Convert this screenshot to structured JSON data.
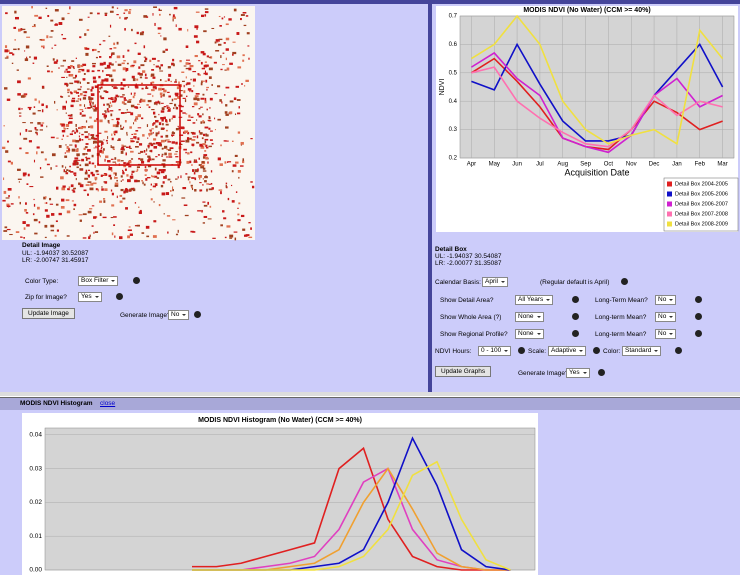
{
  "left_panel": {
    "detail_title": "Detail Image",
    "ul": "UL: -1.94037 30.52087",
    "lr": "LR: -2.00747 31.45917",
    "color_type_label": "Color Type:",
    "color_type": "Box Filter",
    "zip_label": "Zip for Image?",
    "zip": "Yes",
    "update_button": "Update Image",
    "generate_label": "Generate Image?",
    "generate": "No"
  },
  "right_panel": {
    "detail_title": "Detail Box",
    "ul": "UL: -1.94037 30.54087",
    "lr": "LR: -2.00077 31.35087",
    "calendar_label": "Calendar Basis:",
    "calendar": "April",
    "calendar_note": "(Regular default is April)",
    "show_detail_label": "Show Detail Area?",
    "show_detail": "All Years",
    "mean1_label": "Long-Term Mean?",
    "mean1": "No",
    "show_whole_label": "Show Whole Area (?)",
    "show_whole": "None",
    "mean2_label": "Long-term Mean?",
    "mean2": "No",
    "show_regional_label": "Show Regional Profile?",
    "show_regional": "None",
    "mean3_label": "Long-term Mean?",
    "mean3": "No",
    "ndvi_label": "NDVI Hours:",
    "ndvi": "0 - 100",
    "scale_label": "Scale:",
    "scale": "Adaptive",
    "color_label": "Color:",
    "color": "Standard",
    "update_button": "Update Graphs",
    "generate_label": "Generate Image?",
    "generate": "Yes"
  },
  "histogram_header": {
    "title": "MODIS NDVI Histogram",
    "link": "close"
  },
  "chart_data": [
    {
      "type": "line",
      "title": "MODIS NDVI (No Water) (CCM >= 40%)",
      "y_label": "NDVI",
      "x_label": "Acquisition Date",
      "categories": [
        "Apr",
        "May",
        "Jun",
        "Jul",
        "Aug",
        "Sep",
        "Oct",
        "Nov",
        "Dec",
        "Jan",
        "Feb",
        "Mar"
      ],
      "ylim": [
        0.2,
        0.7
      ],
      "yticks": [
        0.2,
        0.3,
        0.4,
        0.5,
        0.6,
        0.7
      ],
      "grid": true,
      "legend": "bottom-right",
      "series": [
        {
          "name": "Detail Box 2004-2005",
          "color": "#e02020",
          "values": [
            0.5,
            0.55,
            0.47,
            0.38,
            0.27,
            0.24,
            0.23,
            0.3,
            0.4,
            0.36,
            0.3,
            0.33
          ]
        },
        {
          "name": "Detail Box 2005-2006",
          "color": "#1010c8",
          "values": [
            0.47,
            0.44,
            0.6,
            0.46,
            0.33,
            0.26,
            0.26,
            0.28,
            0.42,
            0.51,
            0.6,
            0.45
          ]
        },
        {
          "name": "Detail Box 2006-2007",
          "color": "#d020d0",
          "values": [
            0.52,
            0.57,
            0.48,
            0.42,
            0.27,
            0.24,
            0.22,
            0.28,
            0.42,
            0.48,
            0.38,
            0.42
          ]
        },
        {
          "name": "Detail Box 2007-2008",
          "color": "#ff70b0",
          "values": [
            0.5,
            0.52,
            0.4,
            0.34,
            0.29,
            0.25,
            0.24,
            0.3,
            0.42,
            0.35,
            0.4,
            0.38
          ]
        },
        {
          "name": "Detail Box 2008-2009",
          "color": "#f0e040",
          "values": [
            0.55,
            0.6,
            0.7,
            0.6,
            0.4,
            0.3,
            0.25,
            0.28,
            0.3,
            0.25,
            0.65,
            0.55
          ]
        }
      ]
    },
    {
      "type": "line",
      "title": "MODIS NDVI Histogram (No Water) (CCM >= 40%)",
      "x": [
        0.3,
        0.35,
        0.4,
        0.45,
        0.5,
        0.55,
        0.6,
        0.65,
        0.7,
        0.75,
        0.8,
        0.85,
        0.9,
        0.95
      ],
      "xlim": [
        0.0,
        1.0
      ],
      "ylim": [
        0,
        0.042
      ],
      "yticks": [
        {
          "value": 0,
          "label": "0.00"
        },
        {
          "value": 0.01,
          "label": "0.01"
        },
        {
          "value": 0.02,
          "label": "0.02"
        },
        {
          "value": 0.03,
          "label": "0.03"
        },
        {
          "value": 0.04,
          "label": "0.04"
        }
      ],
      "grid": true,
      "series": [
        {
          "color": "#e02020",
          "values": [
            0.001,
            0.001,
            0.002,
            0.004,
            0.006,
            0.008,
            0.03,
            0.036,
            0.015,
            0.004,
            0.001,
            0,
            0,
            0
          ]
        },
        {
          "color": "#e040c0",
          "values": [
            0,
            0,
            0,
            0.001,
            0.002,
            0.004,
            0.012,
            0.026,
            0.03,
            0.012,
            0.003,
            0.001,
            0,
            0
          ]
        },
        {
          "color": "#f0a030",
          "values": [
            0,
            0,
            0,
            0,
            0.001,
            0.002,
            0.006,
            0.02,
            0.03,
            0.018,
            0.005,
            0.001,
            0,
            0
          ]
        },
        {
          "color": "#1010c8",
          "values": [
            0,
            0,
            0,
            0,
            0,
            0.001,
            0.002,
            0.006,
            0.02,
            0.039,
            0.025,
            0.006,
            0.001,
            0
          ]
        },
        {
          "color": "#f0e040",
          "values": [
            0,
            0,
            0,
            0,
            0,
            0,
            0.001,
            0.004,
            0.012,
            0.028,
            0.032,
            0.015,
            0.003,
            0
          ]
        }
      ]
    }
  ]
}
